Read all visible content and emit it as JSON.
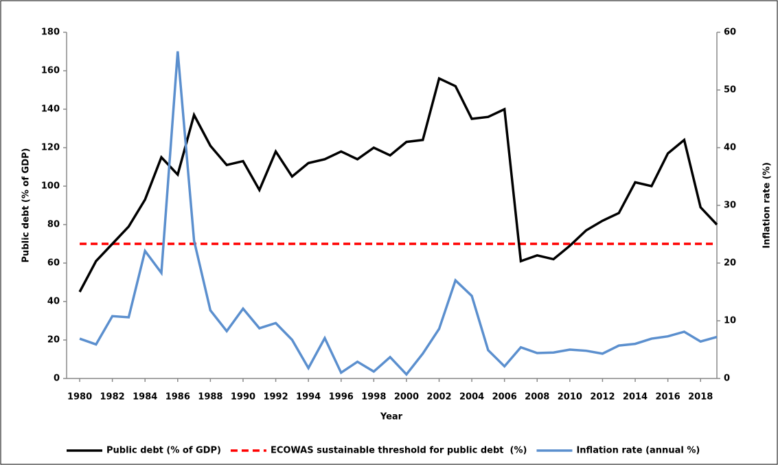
{
  "chart_data": {
    "type": "line",
    "x_label": "Year",
    "y_label": "Public debt (% of GDP)",
    "y2_label": "Inflation rate (%)",
    "x": [
      1980,
      1981,
      1982,
      1983,
      1984,
      1985,
      1986,
      1987,
      1988,
      1989,
      1990,
      1991,
      1992,
      1993,
      1994,
      1995,
      1996,
      1997,
      1998,
      1999,
      2000,
      2001,
      2002,
      2003,
      2004,
      2005,
      2006,
      2007,
      2008,
      2009,
      2010,
      2011,
      2012,
      2013,
      2014,
      2015,
      2016,
      2017,
      2018,
      2019
    ],
    "xlim": [
      1979.2,
      2019
    ],
    "xticks": [
      1980,
      1982,
      1984,
      1986,
      1988,
      1990,
      1992,
      1994,
      1996,
      1998,
      2000,
      2002,
      2004,
      2006,
      2008,
      2010,
      2012,
      2014,
      2016,
      2018
    ],
    "ylim": [
      0,
      180
    ],
    "yticks": [
      0,
      20,
      40,
      60,
      80,
      100,
      120,
      140,
      160,
      180
    ],
    "y2lim": [
      0,
      60
    ],
    "y2ticks": [
      0,
      10,
      20,
      30,
      40,
      50,
      60
    ],
    "series": [
      {
        "name": "Public debt (% of GDP)",
        "color": "#000000",
        "dash": false,
        "values": [
          45,
          61,
          70,
          79,
          93,
          115,
          106,
          137,
          121,
          111,
          113,
          98,
          118,
          105,
          112,
          114,
          118,
          114,
          120,
          116,
          123,
          124,
          156,
          152,
          135,
          136,
          140,
          61,
          64,
          62,
          69,
          77,
          82,
          86,
          102,
          100,
          117,
          124,
          89,
          80
        ]
      },
      {
        "name": "ECOWAS sustainable threshold for public debt  (%)",
        "color": "#ff0000",
        "dash": true,
        "values": [
          70,
          70,
          70,
          70,
          70,
          70,
          70,
          70,
          70,
          70,
          70,
          70,
          70,
          70,
          70,
          70,
          70,
          70,
          70,
          70,
          70,
          70,
          70,
          70,
          70,
          70,
          70,
          70,
          70,
          70,
          70,
          70,
          70,
          70,
          70,
          70,
          70,
          70,
          70,
          70
        ]
      },
      {
        "name": "Inflation rate (annual %)",
        "color": "#5b8fce",
        "dash": false,
        "axis": "y2",
        "values": [
          6.9,
          5.9,
          10.8,
          10.6,
          22.1,
          18.3,
          56.7,
          23.9,
          11.8,
          8.2,
          12.1,
          8.7,
          9.6,
          6.7,
          1.8,
          7.0,
          1.0,
          2.9,
          1.2,
          3.7,
          0.7,
          4.3,
          8.6,
          17.0,
          14.3,
          4.9,
          2.1,
          5.4,
          4.4,
          4.5,
          5.0,
          4.8,
          4.3,
          5.7,
          6.0,
          6.9,
          7.3,
          8.1,
          6.4,
          7.2
        ]
      }
    ]
  }
}
